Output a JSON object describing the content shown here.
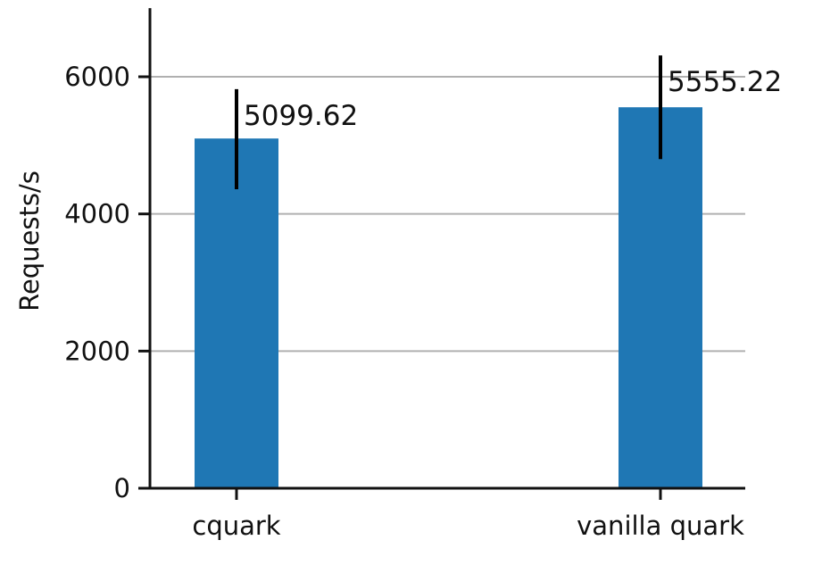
{
  "chart_data": {
    "type": "bar",
    "title": "",
    "xlabel": "",
    "ylabel": "Requests/s",
    "categories": [
      "cquark",
      "vanilla quark"
    ],
    "values": [
      5099.62,
      5555.22
    ],
    "errors": [
      {
        "low": 4360,
        "high": 5820
      },
      {
        "low": 4800,
        "high": 6310
      }
    ],
    "value_labels": [
      "5099.62",
      "5555.22"
    ],
    "ylim": [
      0,
      7000
    ],
    "yticks": [
      0,
      2000,
      4000,
      6000
    ],
    "ytick_labels": [
      "0",
      "2000",
      "4000",
      "6000"
    ],
    "grid": true,
    "colors": {
      "bar": "#1f77b4",
      "grid": "#b0b0b0",
      "axis": "#111111",
      "error": "#000000"
    }
  }
}
